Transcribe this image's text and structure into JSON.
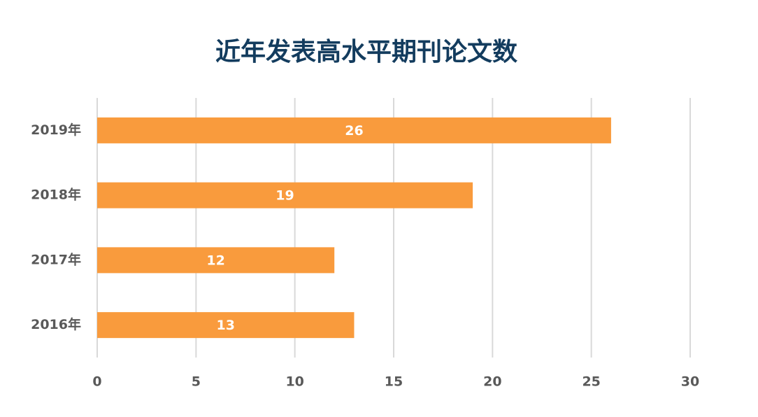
{
  "chart_data": {
    "type": "bar",
    "orientation": "horizontal",
    "title": "近年发表高水平期刊论文数",
    "categories": [
      "2019年",
      "2018年",
      "2017年",
      "2016年"
    ],
    "values": [
      26,
      19,
      12,
      13
    ],
    "color": "#f99b3d",
    "xlim": [
      0,
      30
    ],
    "xticks": [
      0,
      5,
      10,
      15,
      20,
      25,
      30
    ],
    "grid": true,
    "data_labels": true
  }
}
